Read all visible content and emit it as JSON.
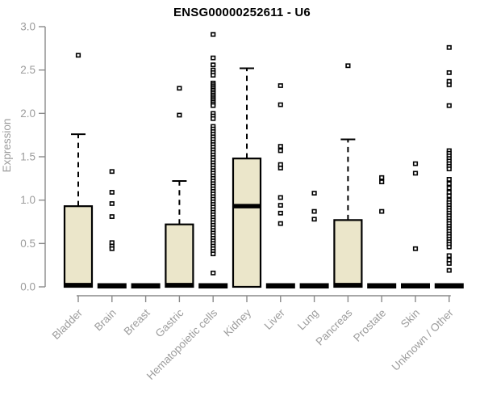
{
  "chart_data": {
    "type": "boxplot",
    "title": "ENSG00000252611 - U6",
    "ylabel": "Expression",
    "xlabel": "",
    "ylim": [
      0,
      3
    ],
    "yticks": [
      "0.0",
      "0.5",
      "1.0",
      "1.5",
      "2.0",
      "2.5",
      "3.0"
    ],
    "grid": false,
    "legend": "none",
    "box_fill_color": "#ebe6ca",
    "box_border_color": "#000000",
    "median_color": "#000000",
    "axis_color": "#8a8a8a",
    "label_color": "#9c9c9c",
    "title_color": "#000000",
    "categories": [
      {
        "label": "Bladder",
        "q1": 0,
        "median": 0.02,
        "q3": 0.93,
        "whisker_low": 0,
        "whisker_high": 1.76,
        "outliers": [
          2.67
        ]
      },
      {
        "label": "Brain",
        "q1": 0,
        "median": 0,
        "q3": 0,
        "whisker_low": 0,
        "whisker_high": 0,
        "outliers": [
          1.33,
          1.09,
          0.96,
          0.81,
          0.51,
          0.47,
          0.44
        ]
      },
      {
        "label": "Breast",
        "q1": 0,
        "median": 0,
        "q3": 0,
        "whisker_low": 0,
        "whisker_high": 0,
        "outliers": []
      },
      {
        "label": "Gastric",
        "q1": 0,
        "median": 0.02,
        "q3": 0.72,
        "whisker_low": 0,
        "whisker_high": 1.22,
        "outliers": [
          2.29,
          1.98
        ]
      },
      {
        "label": "Hematopoietic cells",
        "q1": 0,
        "median": 0,
        "q3": 0,
        "whisker_low": 0,
        "whisker_high": 0,
        "outliers": [
          2.91,
          2.64,
          2.56,
          2.5,
          2.47,
          2.44,
          2.35,
          2.33,
          2.31,
          2.29,
          2.27,
          2.25,
          2.23,
          2.21,
          2.19,
          2.17,
          2.15,
          2.13,
          2.11,
          2.09,
          2.0,
          1.97,
          1.94,
          1.85,
          1.82,
          1.79,
          1.76,
          1.73,
          1.7,
          1.67,
          1.64,
          1.61,
          1.58,
          1.55,
          1.52,
          1.49,
          1.46,
          1.43,
          1.4,
          1.37,
          1.34,
          1.31,
          1.28,
          1.25,
          1.22,
          1.19,
          1.16,
          1.13,
          1.1,
          1.07,
          1.04,
          1.01,
          0.98,
          0.95,
          0.92,
          0.89,
          0.86,
          0.83,
          0.8,
          0.77,
          0.74,
          0.71,
          0.68,
          0.65,
          0.62,
          0.59,
          0.56,
          0.53,
          0.5,
          0.47,
          0.44,
          0.41,
          0.38,
          0.16
        ]
      },
      {
        "label": "Kidney",
        "q1": 0,
        "median": 0.93,
        "q3": 1.48,
        "whisker_low": 0,
        "whisker_high": 2.52,
        "outliers": []
      },
      {
        "label": "Liver",
        "q1": 0,
        "median": 0,
        "q3": 0,
        "whisker_low": 0,
        "whisker_high": 0,
        "outliers": [
          2.32,
          2.1,
          1.62,
          1.57,
          1.41,
          1.37,
          1.03,
          0.94,
          0.85,
          0.73
        ]
      },
      {
        "label": "Lung",
        "q1": 0,
        "median": 0,
        "q3": 0,
        "whisker_low": 0,
        "whisker_high": 0,
        "outliers": [
          1.08,
          0.87,
          0.78
        ]
      },
      {
        "label": "Pancreas",
        "q1": 0,
        "median": 0.02,
        "q3": 0.77,
        "whisker_low": 0,
        "whisker_high": 1.7,
        "outliers": [
          2.55
        ]
      },
      {
        "label": "Prostate",
        "q1": 0,
        "median": 0,
        "q3": 0,
        "whisker_low": 0,
        "whisker_high": 0,
        "outliers": [
          1.26,
          1.21,
          0.87
        ]
      },
      {
        "label": "Skin",
        "q1": 0,
        "median": 0,
        "q3": 0,
        "whisker_low": 0,
        "whisker_high": 0,
        "outliers": [
          1.42,
          1.31,
          0.44
        ]
      },
      {
        "label": "Unknown / Other",
        "q1": 0,
        "median": 0,
        "q3": 0,
        "whisker_low": 0,
        "whisker_high": 0,
        "outliers": [
          2.76,
          2.47,
          2.37,
          2.33,
          2.09,
          1.57,
          1.54,
          1.51,
          1.48,
          1.45,
          1.42,
          1.39,
          1.36,
          1.24,
          1.19,
          1.14,
          1.09,
          1.05,
          1.0,
          0.97,
          0.94,
          0.91,
          0.88,
          0.85,
          0.82,
          0.79,
          0.76,
          0.73,
          0.7,
          0.67,
          0.64,
          0.61,
          0.58,
          0.55,
          0.52,
          0.49,
          0.46,
          0.36,
          0.31,
          0.27,
          0.19
        ]
      }
    ]
  }
}
